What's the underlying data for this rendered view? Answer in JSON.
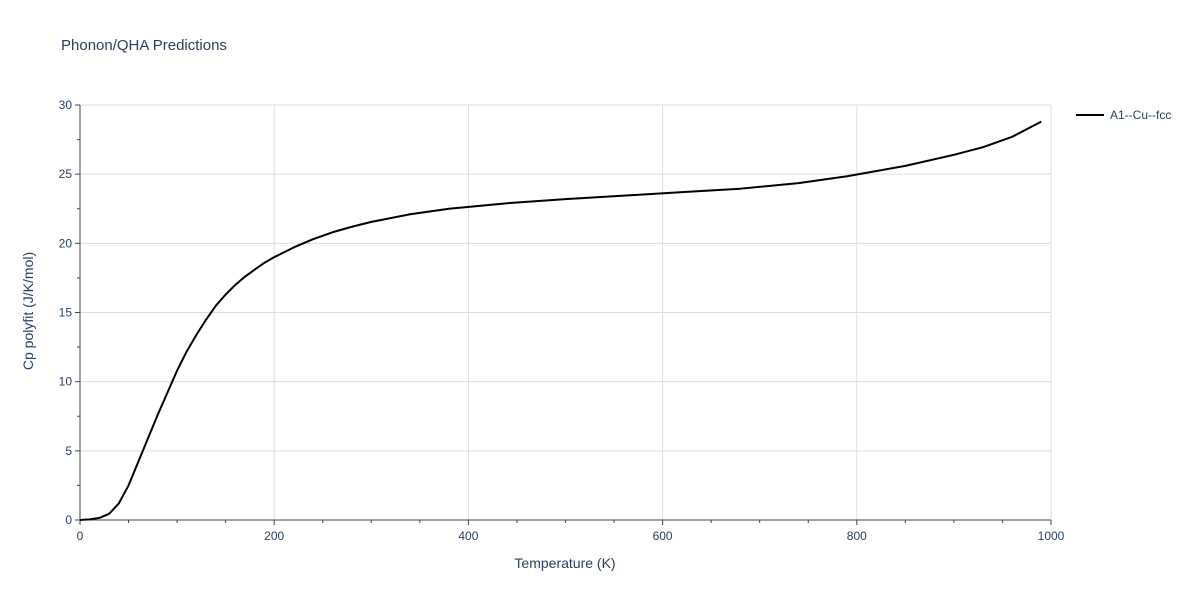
{
  "chart_data": {
    "type": "line",
    "title": "Phonon/QHA Predictions",
    "xlabel": "Temperature (K)",
    "ylabel": "Cp polyfit (J/K/mol)",
    "xlim": [
      0,
      1000
    ],
    "ylim": [
      0,
      30
    ],
    "x_ticks": [
      0,
      200,
      400,
      600,
      800,
      1000
    ],
    "x_tick_labels": [
      "0",
      "200",
      "400",
      "600",
      "800",
      "1000"
    ],
    "y_ticks": [
      0,
      5,
      10,
      15,
      20,
      25,
      30
    ],
    "y_tick_labels": [
      "0",
      "5",
      "10",
      "15",
      "20",
      "25",
      "30"
    ],
    "grid": true,
    "legend_position": "top-right",
    "series": [
      {
        "name": "A1--Cu--fcc",
        "color": "#000000",
        "x": [
          0,
          10,
          20,
          30,
          40,
          50,
          60,
          70,
          80,
          90,
          100,
          110,
          120,
          130,
          140,
          150,
          160,
          170,
          180,
          190,
          200,
          220,
          240,
          260,
          280,
          300,
          340,
          380,
          440,
          500,
          560,
          620,
          680,
          740,
          790,
          850,
          900,
          930,
          960,
          990
        ],
        "y": [
          0,
          0.05,
          0.15,
          0.45,
          1.2,
          2.5,
          4.2,
          5.9,
          7.6,
          9.2,
          10.8,
          12.2,
          13.4,
          14.5,
          15.5,
          16.3,
          17.0,
          17.6,
          18.1,
          18.6,
          19.0,
          19.7,
          20.3,
          20.8,
          21.2,
          21.55,
          22.1,
          22.5,
          22.9,
          23.2,
          23.45,
          23.7,
          23.95,
          24.35,
          24.85,
          25.6,
          26.4,
          26.95,
          27.7,
          28.8
        ]
      }
    ]
  }
}
